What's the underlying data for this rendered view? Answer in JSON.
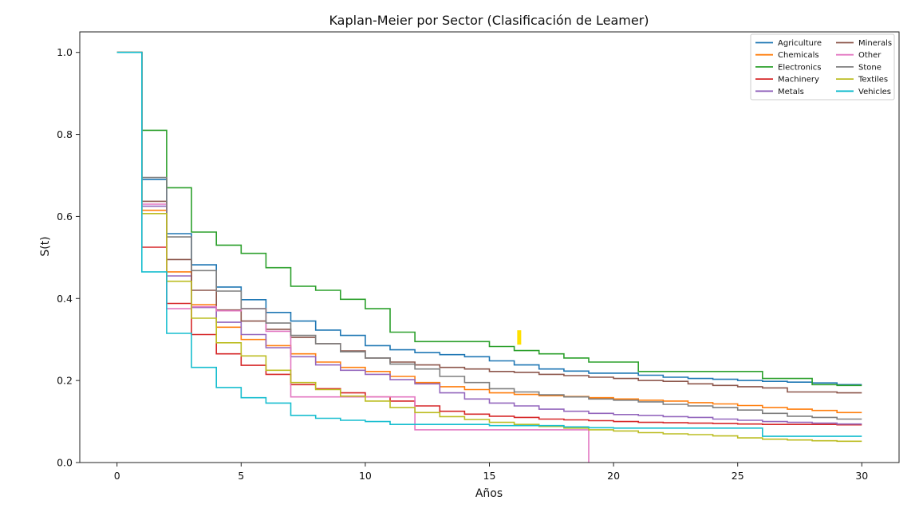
{
  "chart_data": {
    "type": "line",
    "title": "Kaplan-Meier por Sector (Clasificación de Leamer)",
    "xlabel": "Años",
    "ylabel": "S(t)",
    "xlim": [
      -1.5,
      31.5
    ],
    "ylim": [
      0.0,
      1.05
    ],
    "xticks": [
      0,
      5,
      10,
      15,
      20,
      25,
      30
    ],
    "yticks": [
      0.0,
      0.2,
      0.4,
      0.6,
      0.8,
      1.0
    ],
    "ytick_labels": [
      "0.0",
      "0.2",
      "0.4",
      "0.6",
      "0.8",
      "1.0"
    ],
    "grid": false,
    "step": "post",
    "legend_position": "top-right",
    "legend_columns": 2,
    "series": [
      {
        "name": "Agriculture",
        "color": "#1f77b4",
        "x": [
          0,
          1,
          2,
          3,
          4,
          5,
          6,
          7,
          8,
          9,
          10,
          11,
          12,
          13,
          14,
          15,
          16,
          17,
          18,
          19,
          20,
          21,
          22,
          23,
          24,
          25,
          26,
          27,
          28,
          29,
          30
        ],
        "y": [
          1.0,
          0.69,
          0.558,
          0.482,
          0.428,
          0.397,
          0.366,
          0.345,
          0.323,
          0.31,
          0.285,
          0.275,
          0.268,
          0.263,
          0.258,
          0.248,
          0.238,
          0.228,
          0.223,
          0.218,
          0.218,
          0.213,
          0.208,
          0.205,
          0.203,
          0.2,
          0.198,
          0.196,
          0.194,
          0.19,
          0.19
        ]
      },
      {
        "name": "Chemicals",
        "color": "#ff7f0e",
        "x": [
          0,
          1,
          2,
          3,
          4,
          5,
          6,
          7,
          8,
          9,
          10,
          11,
          12,
          13,
          14,
          15,
          16,
          17,
          18,
          19,
          20,
          21,
          22,
          23,
          24,
          25,
          26,
          27,
          28,
          29,
          30
        ],
        "y": [
          1.0,
          0.615,
          0.465,
          0.385,
          0.33,
          0.3,
          0.285,
          0.265,
          0.245,
          0.232,
          0.222,
          0.21,
          0.195,
          0.185,
          0.178,
          0.17,
          0.166,
          0.163,
          0.161,
          0.158,
          0.155,
          0.152,
          0.15,
          0.146,
          0.143,
          0.139,
          0.134,
          0.13,
          0.127,
          0.122,
          0.122
        ]
      },
      {
        "name": "Electronics",
        "color": "#2ca02c",
        "x": [
          0,
          1,
          2,
          3,
          4,
          5,
          6,
          7,
          8,
          9,
          10,
          11,
          12,
          13,
          14,
          15,
          16,
          17,
          18,
          19,
          20,
          21,
          22,
          23,
          24,
          25,
          26,
          27,
          28,
          29,
          30
        ],
        "y": [
          1.0,
          0.81,
          0.67,
          0.562,
          0.53,
          0.51,
          0.475,
          0.43,
          0.42,
          0.398,
          0.375,
          0.318,
          0.295,
          0.295,
          0.295,
          0.283,
          0.273,
          0.265,
          0.255,
          0.245,
          0.245,
          0.222,
          0.222,
          0.222,
          0.222,
          0.222,
          0.205,
          0.205,
          0.19,
          0.188,
          0.188
        ]
      },
      {
        "name": "Machinery",
        "color": "#d62728",
        "x": [
          0,
          1,
          2,
          3,
          4,
          5,
          6,
          7,
          8,
          9,
          10,
          11,
          12,
          13,
          14,
          15,
          16,
          17,
          18,
          19,
          20,
          21,
          22,
          23,
          24,
          25,
          26,
          27,
          28,
          29,
          30
        ],
        "y": [
          1.0,
          0.525,
          0.388,
          0.312,
          0.265,
          0.237,
          0.215,
          0.19,
          0.18,
          0.17,
          0.16,
          0.15,
          0.138,
          0.125,
          0.118,
          0.113,
          0.11,
          0.106,
          0.104,
          0.102,
          0.1,
          0.098,
          0.097,
          0.096,
          0.095,
          0.094,
          0.093,
          0.093,
          0.093,
          0.092,
          0.092
        ]
      },
      {
        "name": "Metals",
        "color": "#9467bd",
        "x": [
          0,
          1,
          2,
          3,
          4,
          5,
          6,
          7,
          8,
          9,
          10,
          11,
          12,
          13,
          14,
          15,
          16,
          17,
          18,
          19,
          20,
          21,
          22,
          23,
          24,
          25,
          26,
          27,
          28,
          29,
          30
        ],
        "y": [
          1.0,
          0.625,
          0.455,
          0.378,
          0.342,
          0.312,
          0.28,
          0.258,
          0.238,
          0.225,
          0.215,
          0.202,
          0.192,
          0.17,
          0.155,
          0.145,
          0.138,
          0.13,
          0.125,
          0.12,
          0.117,
          0.115,
          0.112,
          0.11,
          0.106,
          0.103,
          0.1,
          0.098,
          0.096,
          0.094,
          0.094
        ]
      },
      {
        "name": "Minerals",
        "color": "#8c564b",
        "x": [
          0,
          1,
          2,
          3,
          4,
          5,
          6,
          7,
          8,
          9,
          10,
          11,
          12,
          13,
          14,
          15,
          16,
          17,
          18,
          19,
          20,
          21,
          22,
          23,
          24,
          25,
          26,
          27,
          28,
          29,
          30
        ],
        "y": [
          1.0,
          0.637,
          0.495,
          0.42,
          0.372,
          0.345,
          0.325,
          0.305,
          0.29,
          0.272,
          0.255,
          0.245,
          0.238,
          0.232,
          0.228,
          0.222,
          0.22,
          0.215,
          0.212,
          0.208,
          0.205,
          0.2,
          0.198,
          0.192,
          0.188,
          0.185,
          0.182,
          0.172,
          0.172,
          0.17,
          0.17
        ]
      },
      {
        "name": "Other",
        "color": "#e377c2",
        "x": [
          0,
          1,
          2,
          3,
          4,
          5,
          6,
          7,
          8,
          9,
          10,
          11,
          12,
          13,
          14,
          15,
          16,
          17,
          18,
          19
        ],
        "y": [
          1.0,
          0.63,
          0.375,
          0.38,
          0.37,
          0.375,
          0.32,
          0.16,
          0.16,
          0.16,
          0.16,
          0.16,
          0.08,
          0.08,
          0.08,
          0.08,
          0.08,
          0.08,
          0.08,
          0.0
        ]
      },
      {
        "name": "Stone",
        "color": "#7f7f7f",
        "x": [
          0,
          1,
          2,
          3,
          4,
          5,
          6,
          7,
          8,
          9,
          10,
          11,
          12,
          13,
          14,
          15,
          16,
          17,
          18,
          19,
          20,
          21,
          22,
          23,
          24,
          25,
          26,
          27,
          28,
          29,
          30
        ],
        "y": [
          1.0,
          0.695,
          0.55,
          0.468,
          0.418,
          0.375,
          0.34,
          0.31,
          0.29,
          0.27,
          0.255,
          0.24,
          0.228,
          0.21,
          0.195,
          0.18,
          0.172,
          0.165,
          0.16,
          0.155,
          0.152,
          0.148,
          0.142,
          0.138,
          0.134,
          0.128,
          0.12,
          0.113,
          0.11,
          0.106,
          0.106
        ]
      },
      {
        "name": "Textiles",
        "color": "#bcbd22",
        "x": [
          0,
          1,
          2,
          3,
          4,
          5,
          6,
          7,
          8,
          9,
          10,
          11,
          12,
          13,
          14,
          15,
          16,
          17,
          18,
          19,
          20,
          21,
          22,
          23,
          24,
          25,
          26,
          27,
          28,
          29,
          30
        ],
        "y": [
          1.0,
          0.607,
          0.442,
          0.352,
          0.292,
          0.26,
          0.225,
          0.195,
          0.178,
          0.162,
          0.15,
          0.134,
          0.122,
          0.112,
          0.105,
          0.098,
          0.093,
          0.088,
          0.084,
          0.08,
          0.077,
          0.073,
          0.07,
          0.068,
          0.065,
          0.06,
          0.057,
          0.055,
          0.053,
          0.052,
          0.052
        ]
      },
      {
        "name": "Vehicles",
        "color": "#17becf",
        "x": [
          0,
          1,
          2,
          3,
          4,
          5,
          6,
          7,
          8,
          9,
          10,
          11,
          12,
          13,
          14,
          15,
          16,
          17,
          18,
          19,
          20,
          21,
          22,
          23,
          24,
          25,
          26,
          27,
          28,
          29,
          30
        ],
        "y": [
          1.0,
          0.465,
          0.315,
          0.232,
          0.183,
          0.158,
          0.145,
          0.115,
          0.108,
          0.103,
          0.1,
          0.093,
          0.093,
          0.093,
          0.093,
          0.09,
          0.09,
          0.09,
          0.087,
          0.085,
          0.084,
          0.084,
          0.084,
          0.084,
          0.084,
          0.084,
          0.064,
          0.064,
          0.064,
          0.064,
          0.064
        ]
      }
    ],
    "annotations": [
      {
        "kind": "marker",
        "x": 16.2,
        "y": 0.305,
        "color": "#ffe000"
      }
    ]
  }
}
